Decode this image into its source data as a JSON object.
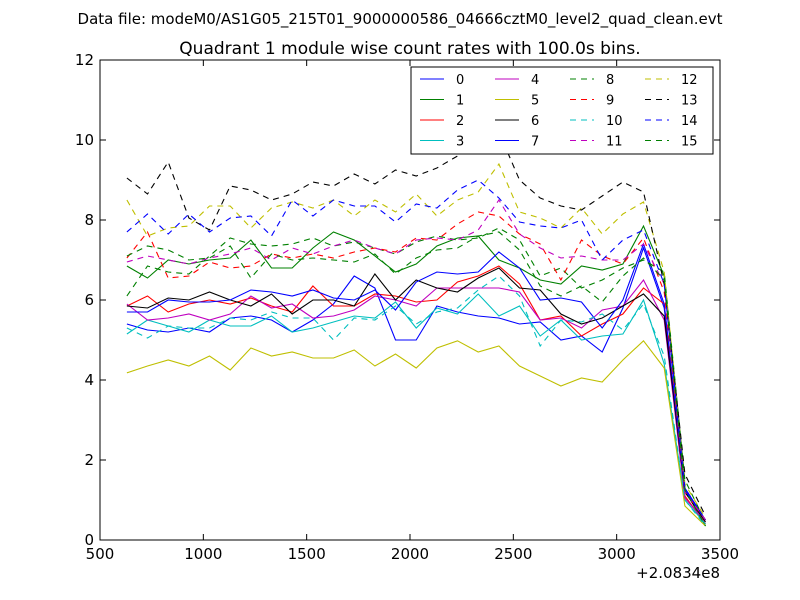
{
  "suptitle": "Data file: modeM0/AS1G05_215T01_9000000586_04666cztM0_level2_quad_clean.evt",
  "chart_data": {
    "type": "line",
    "title": "Quadrant 1 module wise count rates with 100.0s bins.",
    "xlabel": "",
    "ylabel": "",
    "x_offset_label": "+2.0834e8",
    "xlim": [
      500,
      3500
    ],
    "ylim": [
      0,
      12
    ],
    "xticks": [
      500,
      1000,
      1500,
      2000,
      2500,
      3000,
      3500
    ],
    "yticks": [
      0,
      2,
      4,
      6,
      8,
      10,
      12
    ],
    "legend_position": "top-right",
    "x": [
      630,
      730,
      830,
      930,
      1030,
      1130,
      1230,
      1330,
      1430,
      1530,
      1630,
      1730,
      1830,
      1930,
      2030,
      2130,
      2230,
      2330,
      2430,
      2530,
      2630,
      2730,
      2830,
      2930,
      3030,
      3130,
      3230,
      3330,
      3430
    ],
    "series": [
      {
        "name": "0",
        "color": "#0000ff",
        "dash": "solid",
        "values": [
          5.4,
          5.25,
          5.2,
          5.3,
          5.2,
          5.55,
          5.6,
          5.5,
          5.2,
          5.5,
          5.9,
          6.6,
          6.3,
          5.0,
          5.0,
          5.85,
          5.7,
          5.6,
          5.55,
          5.4,
          5.45,
          5.0,
          5.1,
          4.7,
          5.8,
          7.3,
          5.8,
          1.3,
          0.5
        ]
      },
      {
        "name": "1",
        "color": "#008000",
        "dash": "solid",
        "values": [
          6.85,
          6.55,
          7.0,
          6.9,
          7.0,
          7.05,
          7.5,
          6.8,
          6.8,
          7.3,
          7.7,
          7.5,
          7.1,
          6.7,
          6.9,
          7.35,
          7.55,
          7.6,
          7.0,
          6.8,
          6.5,
          6.4,
          6.85,
          6.75,
          6.9,
          7.85,
          6.6,
          1.25,
          0.35
        ]
      },
      {
        "name": "2",
        "color": "#ff0000",
        "dash": "solid",
        "values": [
          5.85,
          6.1,
          5.7,
          5.9,
          6.0,
          5.9,
          6.05,
          5.85,
          5.7,
          6.35,
          5.85,
          5.85,
          6.15,
          6.1,
          5.95,
          6.0,
          6.45,
          6.6,
          6.85,
          6.4,
          5.5,
          5.6,
          5.1,
          5.4,
          5.65,
          6.3,
          5.9,
          1.1,
          0.4
        ]
      },
      {
        "name": "3",
        "color": "#00bfbf",
        "dash": "solid",
        "values": [
          5.15,
          5.5,
          5.35,
          5.2,
          5.5,
          5.35,
          5.35,
          5.6,
          5.2,
          5.3,
          5.45,
          5.6,
          5.55,
          5.95,
          5.3,
          5.8,
          5.65,
          6.15,
          5.6,
          5.85,
          5.1,
          5.5,
          5.0,
          5.1,
          5.15,
          6.0,
          4.4,
          1.0,
          0.4
        ]
      },
      {
        "name": "4",
        "color": "#bf00bf",
        "dash": "solid",
        "values": [
          5.9,
          5.5,
          5.55,
          5.65,
          5.5,
          5.65,
          6.1,
          5.8,
          5.9,
          5.55,
          5.6,
          5.75,
          6.1,
          6.0,
          5.85,
          6.3,
          6.3,
          6.3,
          6.3,
          6.2,
          5.5,
          5.55,
          5.3,
          5.75,
          5.85,
          6.5,
          5.5,
          1.05,
          0.45
        ]
      },
      {
        "name": "5",
        "color": "#bfbf00",
        "dash": "solid",
        "values": [
          4.18,
          4.35,
          4.5,
          4.35,
          4.6,
          4.25,
          4.8,
          4.6,
          4.7,
          4.55,
          4.55,
          4.75,
          4.35,
          4.65,
          4.3,
          4.8,
          4.98,
          4.7,
          4.85,
          4.35,
          4.1,
          3.85,
          4.05,
          3.95,
          4.5,
          4.98,
          4.3,
          0.85,
          0.35
        ]
      },
      {
        "name": "6",
        "color": "#000000",
        "dash": "solid",
        "values": [
          5.85,
          5.8,
          6.05,
          6.0,
          6.2,
          6.0,
          5.85,
          6.15,
          5.65,
          6.0,
          6.0,
          5.85,
          6.65,
          6.0,
          6.5,
          6.3,
          6.2,
          6.55,
          6.8,
          6.3,
          6.25,
          5.65,
          5.4,
          5.55,
          5.85,
          6.15,
          5.6,
          1.2,
          0.45
        ]
      },
      {
        "name": "7",
        "color": "#0000ff",
        "dash": "solid",
        "values": [
          5.7,
          5.7,
          6.0,
          5.95,
          5.95,
          6.0,
          6.25,
          6.2,
          6.1,
          6.25,
          6.05,
          6.0,
          6.25,
          5.75,
          6.45,
          6.7,
          6.65,
          6.7,
          7.2,
          6.8,
          6.0,
          6.05,
          5.95,
          5.3,
          6.0,
          7.4,
          5.9,
          1.25,
          0.5
        ]
      },
      {
        "name": "8",
        "color": "#008000",
        "dash": "dashed",
        "values": [
          6.1,
          6.85,
          6.7,
          6.65,
          7.1,
          7.55,
          7.4,
          7.35,
          7.4,
          7.55,
          7.35,
          7.45,
          7.3,
          7.15,
          7.45,
          7.6,
          7.5,
          7.55,
          7.8,
          7.5,
          6.6,
          6.8,
          6.3,
          6.5,
          6.8,
          7.0,
          6.7,
          1.5,
          0.45
        ]
      },
      {
        "name": "9",
        "color": "#ff0000",
        "dash": "dashed",
        "values": [
          7.05,
          7.7,
          6.55,
          6.6,
          6.95,
          6.8,
          6.85,
          7.15,
          7.05,
          7.15,
          7.05,
          7.2,
          7.3,
          7.2,
          7.55,
          7.5,
          7.9,
          8.2,
          8.1,
          7.65,
          7.4,
          6.5,
          7.5,
          7.1,
          6.9,
          7.55,
          6.2,
          1.2,
          0.5
        ]
      },
      {
        "name": "10",
        "color": "#00bfbf",
        "dash": "dashed",
        "values": [
          5.3,
          5.05,
          5.35,
          5.3,
          5.3,
          5.55,
          5.5,
          5.7,
          5.55,
          5.55,
          5.0,
          5.55,
          5.5,
          5.85,
          5.4,
          5.7,
          5.8,
          6.25,
          6.6,
          6.1,
          4.85,
          5.5,
          5.45,
          5.65,
          5.25,
          5.9,
          4.6,
          1.0,
          0.35
        ]
      },
      {
        "name": "11",
        "color": "#bf00bf",
        "dash": "dashed",
        "values": [
          6.95,
          7.1,
          7.0,
          6.9,
          7.05,
          7.15,
          7.3,
          7.0,
          7.3,
          7.15,
          7.35,
          7.5,
          7.3,
          7.15,
          7.5,
          7.55,
          7.5,
          7.75,
          8.5,
          7.65,
          7.3,
          7.05,
          7.1,
          7.0,
          7.0,
          7.4,
          6.4,
          1.2,
          0.5
        ]
      },
      {
        "name": "12",
        "color": "#bfbf00",
        "dash": "dashed",
        "values": [
          8.5,
          7.6,
          7.8,
          7.85,
          8.35,
          8.35,
          7.8,
          8.3,
          8.45,
          8.3,
          8.5,
          8.1,
          8.5,
          8.2,
          8.65,
          8.1,
          8.5,
          8.7,
          9.4,
          8.2,
          8.05,
          7.8,
          8.3,
          7.65,
          8.15,
          8.45,
          6.7,
          1.4,
          0.55
        ]
      },
      {
        "name": "13",
        "color": "#000000",
        "dash": "dashed",
        "values": [
          9.05,
          8.65,
          9.45,
          8.05,
          7.75,
          8.85,
          8.75,
          8.5,
          8.65,
          8.95,
          8.85,
          9.15,
          8.9,
          9.25,
          9.1,
          9.3,
          9.6,
          10.0,
          10.2,
          9.0,
          8.55,
          8.35,
          8.25,
          8.6,
          8.95,
          8.7,
          6.4,
          1.65,
          0.6
        ]
      },
      {
        "name": "14",
        "color": "#0000ff",
        "dash": "dashed",
        "values": [
          7.7,
          8.15,
          7.65,
          8.15,
          7.7,
          8.05,
          8.1,
          7.6,
          8.5,
          8.1,
          8.5,
          8.35,
          8.35,
          7.95,
          8.4,
          8.3,
          8.75,
          9.0,
          8.55,
          7.95,
          7.85,
          7.8,
          8.0,
          7.0,
          7.5,
          7.75,
          6.4,
          1.3,
          0.5
        ]
      },
      {
        "name": "15",
        "color": "#008000",
        "dash": "dashed",
        "values": [
          7.1,
          7.35,
          7.25,
          7.0,
          7.05,
          7.35,
          6.55,
          7.15,
          7.0,
          7.05,
          7.0,
          6.95,
          7.15,
          6.65,
          7.05,
          7.25,
          7.3,
          7.6,
          7.7,
          7.25,
          6.35,
          6.1,
          6.35,
          5.95,
          6.6,
          7.05,
          6.5,
          1.25,
          0.35
        ]
      }
    ]
  }
}
